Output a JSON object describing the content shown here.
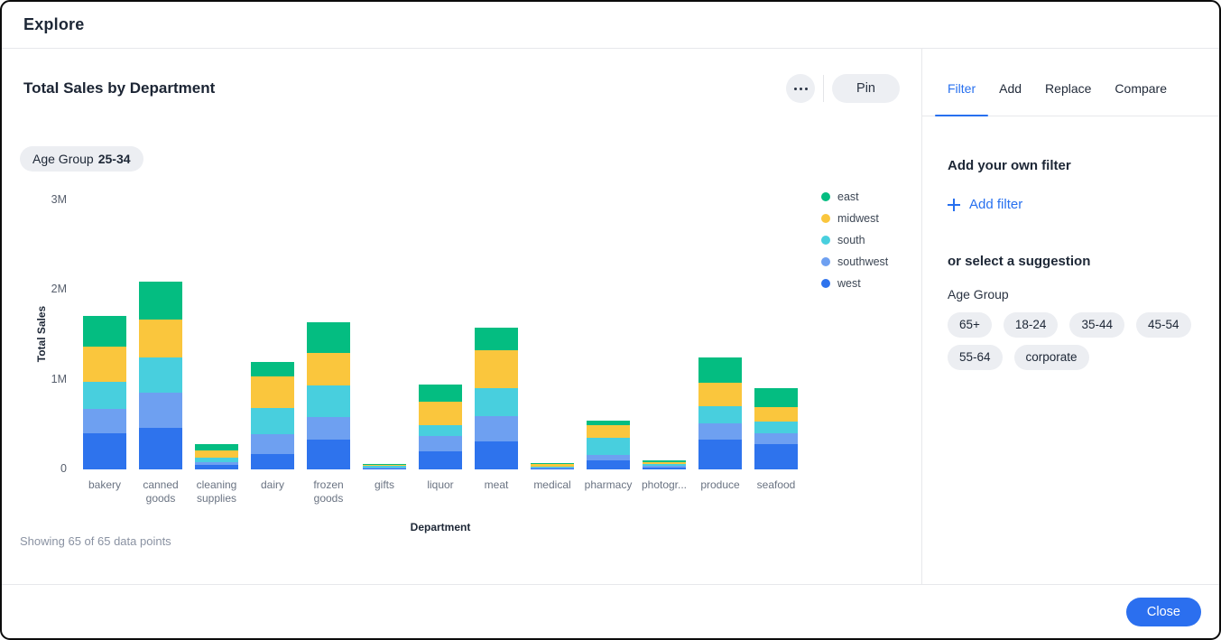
{
  "window": {
    "title": "Explore"
  },
  "card": {
    "title": "Total Sales by Department",
    "pin_label": "Pin",
    "filter_chip": {
      "label": "Age Group",
      "value": "25-34"
    },
    "status": "Showing 65 of 65 data points"
  },
  "panel": {
    "tabs": [
      {
        "label": "Filter",
        "active": true
      },
      {
        "label": "Add",
        "active": false
      },
      {
        "label": "Replace",
        "active": false
      },
      {
        "label": "Compare",
        "active": false
      }
    ],
    "own_filter_heading": "Add your own filter",
    "add_filter_label": "Add filter",
    "suggestion_heading": "or select a suggestion",
    "suggestion_group": "Age Group",
    "suggestions": [
      "65+",
      "18-24",
      "35-44",
      "45-54",
      "55-64",
      "corporate"
    ]
  },
  "footer": {
    "close_label": "Close"
  },
  "colors": {
    "accent": "#2770ef",
    "east": "#04bd81",
    "midwest": "#fac63d",
    "south": "#48cfde",
    "southwest": "#6ea0f1",
    "west": "#2e73ed"
  },
  "chart_data": {
    "type": "bar",
    "variant": "stacked-vertical",
    "title": "Total Sales by Department",
    "xlabel": "Department",
    "ylabel": "Total Sales",
    "ylim": [
      0,
      3000000
    ],
    "values_unit": "millions",
    "grid": false,
    "legend_position": "right-top",
    "y_ticks": [
      {
        "value": 0,
        "label": "0"
      },
      {
        "value": 1,
        "label": "1M"
      },
      {
        "value": 2,
        "label": "2M"
      },
      {
        "value": 3,
        "label": "3M"
      }
    ],
    "categories": [
      "bakery",
      "canned goods",
      "cleaning supplies",
      "dairy",
      "frozen goods",
      "gifts",
      "liquor",
      "meat",
      "medical",
      "pharmacy",
      "photogr...",
      "produce",
      "seafood"
    ],
    "stack_order_bottom_to_top": [
      "west",
      "southwest",
      "south",
      "midwest",
      "east"
    ],
    "series": [
      {
        "name": "east",
        "color": "#04bd81",
        "values": [
          0.34,
          0.43,
          0.07,
          0.16,
          0.34,
          0.012,
          0.19,
          0.25,
          0.005,
          0.05,
          0.012,
          0.28,
          0.21
        ]
      },
      {
        "name": "midwest",
        "color": "#fac63d",
        "values": [
          0.39,
          0.42,
          0.08,
          0.35,
          0.36,
          0.012,
          0.27,
          0.42,
          0.03,
          0.14,
          0.025,
          0.27,
          0.17
        ]
      },
      {
        "name": "south",
        "color": "#48cfde",
        "values": [
          0.3,
          0.39,
          0.045,
          0.3,
          0.36,
          0.012,
          0.12,
          0.32,
          0.01,
          0.19,
          0.02,
          0.19,
          0.13
        ]
      },
      {
        "name": "southwest",
        "color": "#6ea0f1",
        "values": [
          0.28,
          0.4,
          0.035,
          0.22,
          0.25,
          0.012,
          0.17,
          0.28,
          0.01,
          0.06,
          0.02,
          0.18,
          0.12
        ]
      },
      {
        "name": "west",
        "color": "#2e73ed",
        "values": [
          0.4,
          0.46,
          0.05,
          0.17,
          0.33,
          0.012,
          0.2,
          0.31,
          0.015,
          0.1,
          0.02,
          0.33,
          0.28
        ]
      }
    ]
  }
}
